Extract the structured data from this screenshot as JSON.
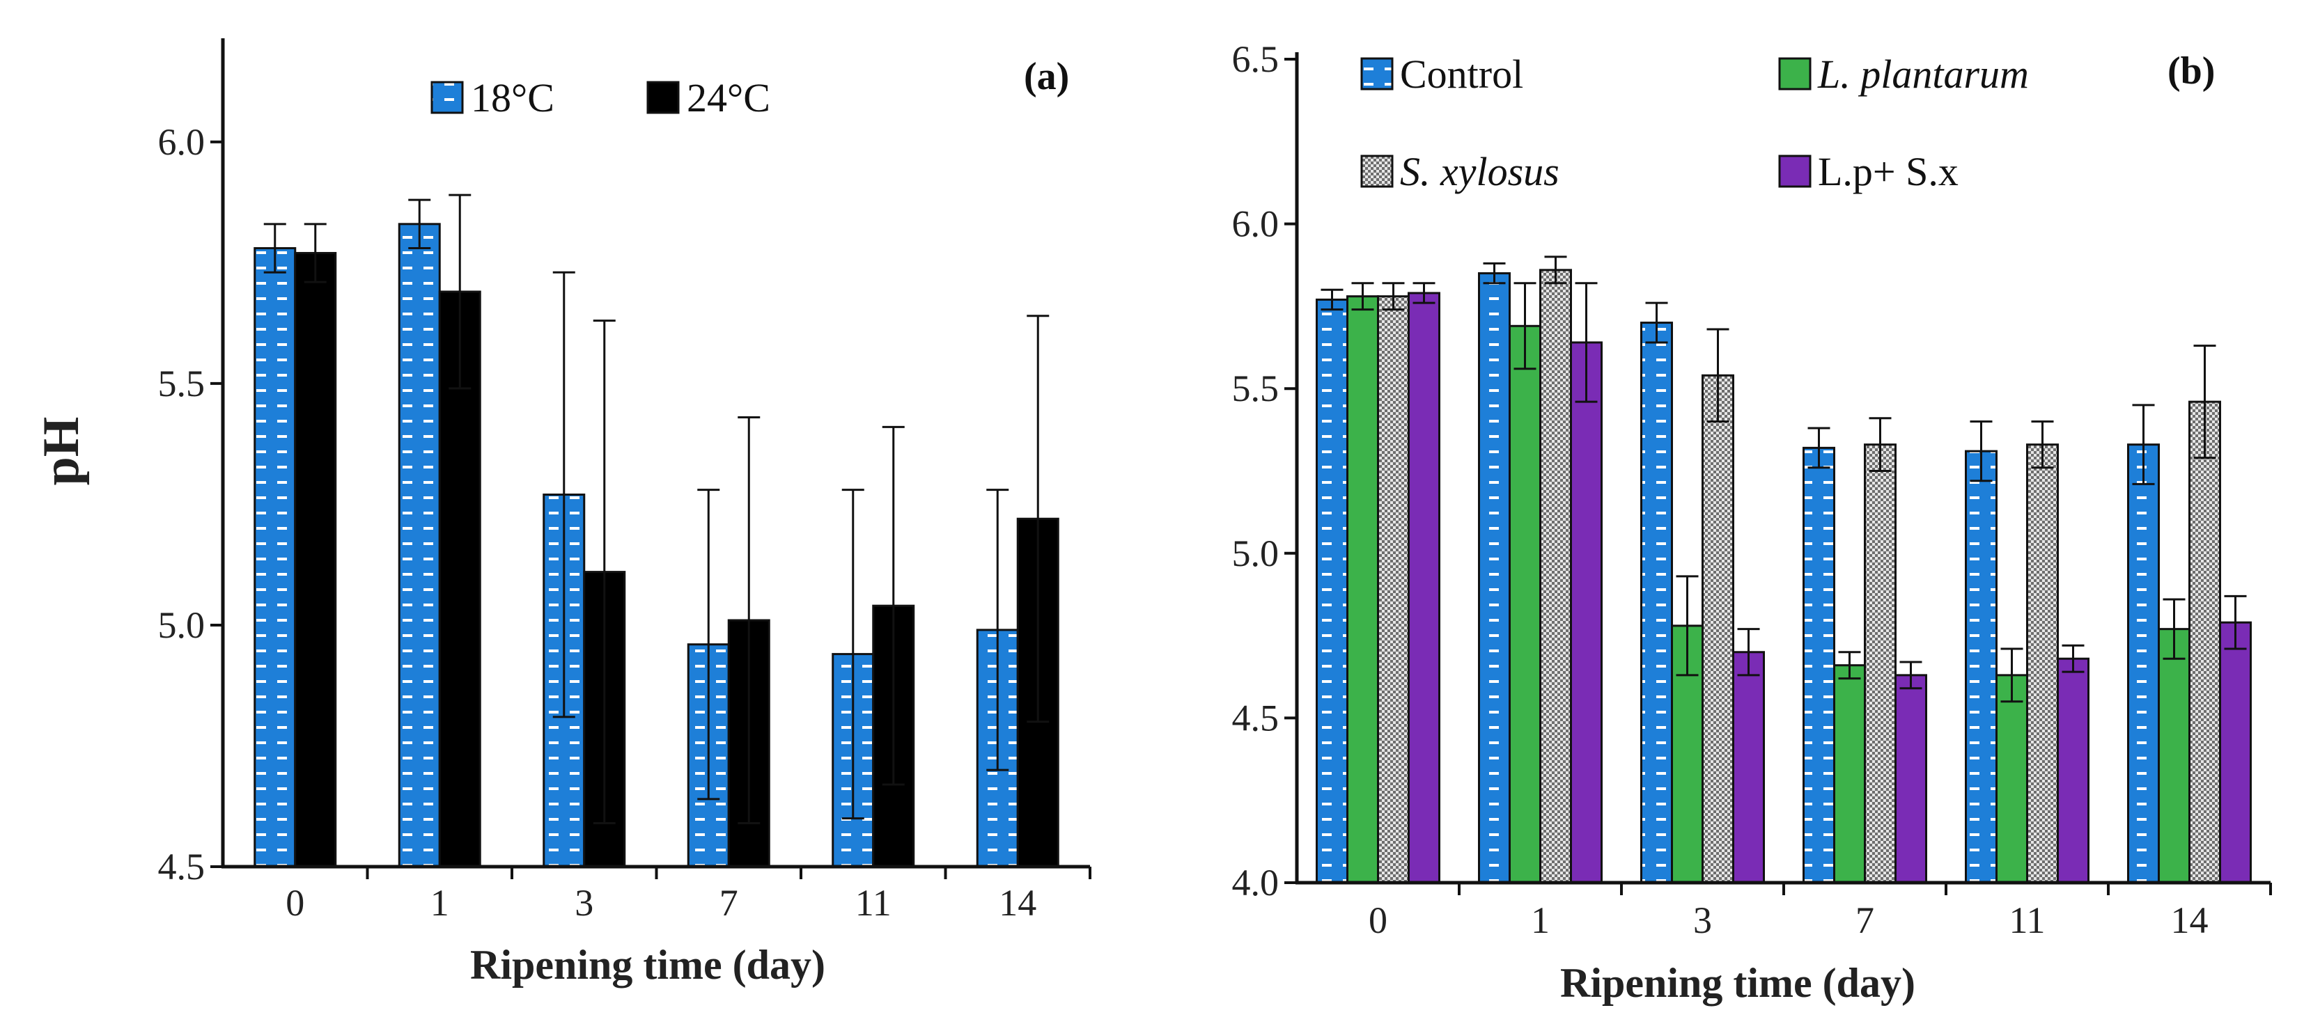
{
  "chart_data": [
    {
      "type": "bar",
      "panel_label": "(a)",
      "categories": [
        "0",
        "1",
        "3",
        "7",
        "11",
        "14"
      ],
      "xlabel": "Ripening time (day)",
      "ylabel": "pH",
      "ylim": [
        4.5,
        6.2
      ],
      "yticks": [
        "4.5",
        "5.0",
        "5.5",
        "6.0"
      ],
      "legend_position": "top",
      "series": [
        {
          "name": "18°C",
          "style": "pattern-blue",
          "values": [
            5.78,
            5.83,
            5.27,
            4.96,
            4.94,
            4.99
          ],
          "errors": [
            0.05,
            0.05,
            0.46,
            0.32,
            0.34,
            0.29
          ]
        },
        {
          "name": "24°C",
          "style": "solid-black",
          "values": [
            5.77,
            5.69,
            5.11,
            5.01,
            5.04,
            5.22
          ],
          "errors": [
            0.06,
            0.2,
            0.52,
            0.42,
            0.37,
            0.42
          ]
        }
      ]
    },
    {
      "type": "bar",
      "panel_label": "(b)",
      "categories": [
        "0",
        "1",
        "3",
        "7",
        "11",
        "14"
      ],
      "xlabel": "Ripening time (day)",
      "ylabel": "",
      "ylim": [
        4.0,
        6.5
      ],
      "yticks": [
        "4.0",
        "4.5",
        "5.0",
        "5.5",
        "6.0",
        "6.5"
      ],
      "legend_position": "top",
      "series": [
        {
          "name": "Control",
          "italic": false,
          "style": "pattern-blue",
          "values": [
            5.77,
            5.85,
            5.7,
            5.32,
            5.31,
            5.33
          ],
          "errors": [
            0.03,
            0.03,
            0.06,
            0.06,
            0.09,
            0.12
          ]
        },
        {
          "name": "L. plantarum",
          "italic": true,
          "style": "solid-green",
          "values": [
            5.78,
            5.69,
            4.78,
            4.66,
            4.63,
            4.77
          ],
          "errors": [
            0.04,
            0.13,
            0.15,
            0.04,
            0.08,
            0.09
          ]
        },
        {
          "name": "S. xylosus",
          "italic": true,
          "style": "pattern-grey",
          "values": [
            5.78,
            5.86,
            5.54,
            5.33,
            5.33,
            5.46
          ],
          "errors": [
            0.04,
            0.04,
            0.14,
            0.08,
            0.07,
            0.17
          ]
        },
        {
          "name": "L.p+ S.x",
          "italic": false,
          "style": "solid-purple",
          "values": [
            5.79,
            5.64,
            4.7,
            4.63,
            4.68,
            4.79
          ],
          "errors": [
            0.03,
            0.18,
            0.07,
            0.04,
            0.04,
            0.08
          ]
        }
      ]
    }
  ],
  "colors": {
    "blue": "#1e7fd8",
    "black": "#000000",
    "green": "#3cb24a",
    "grey": "#d2d2d2",
    "purple": "#7a2cb5",
    "axis": "#111111"
  }
}
